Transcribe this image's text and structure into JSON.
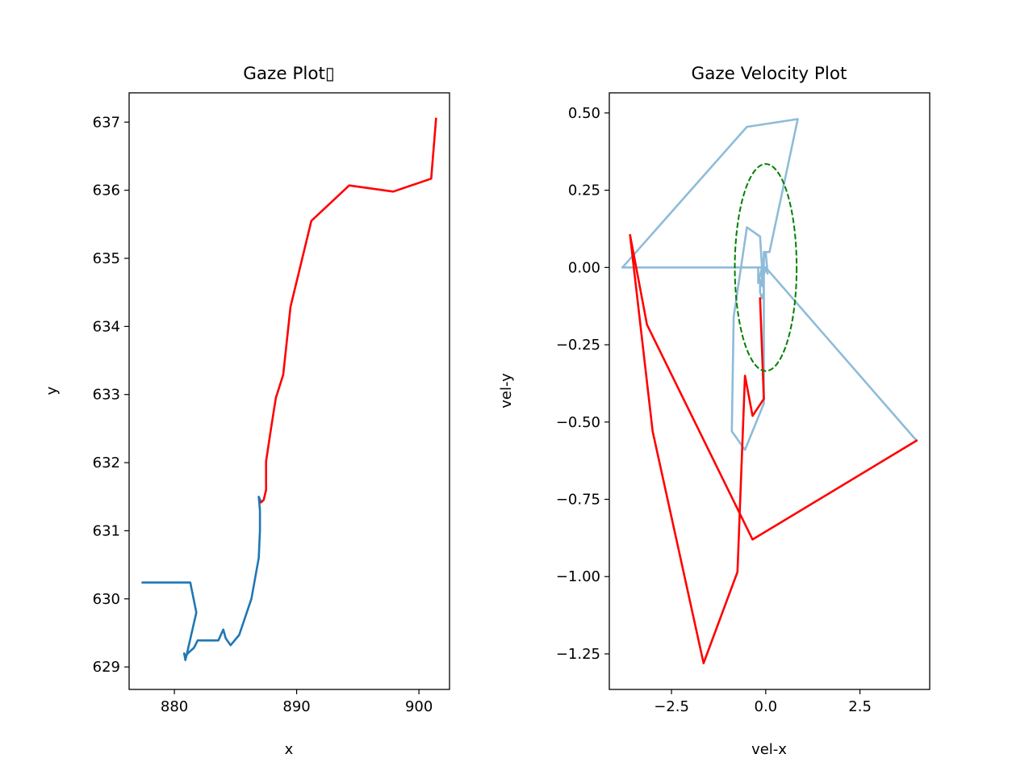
{
  "chart_data": [
    {
      "type": "line",
      "title": "Gaze Plot▯",
      "xlabel": "x",
      "ylabel": "y",
      "xlim": [
        876.3,
        902.5
      ],
      "ylim": [
        628.67,
        637.43
      ],
      "xticks": [
        880,
        890,
        900
      ],
      "xtick_labels": [
        "880",
        "890",
        "900"
      ],
      "yticks": [
        629,
        630,
        631,
        632,
        633,
        634,
        635,
        636,
        637
      ],
      "ytick_labels": [
        "629",
        "630",
        "631",
        "632",
        "633",
        "634",
        "635",
        "636",
        "637"
      ],
      "grid": false,
      "series": [
        {
          "color": "#1f77b4",
          "opacity": 1,
          "points": [
            [
              877.4,
              630.24
            ],
            [
              881.3,
              630.24
            ],
            [
              881.8,
              629.8
            ],
            [
              881.1,
              629.25
            ],
            [
              880.9,
              629.1
            ],
            [
              880.8,
              629.2
            ],
            [
              880.9,
              629.15
            ],
            [
              881.1,
              629.2
            ],
            [
              881.6,
              629.28
            ],
            [
              881.9,
              629.39
            ],
            [
              883.6,
              629.39
            ],
            [
              884.0,
              629.55
            ],
            [
              884.2,
              629.42
            ],
            [
              884.6,
              629.32
            ],
            [
              885.3,
              629.47
            ],
            [
              886.3,
              630.0
            ],
            [
              886.9,
              630.6
            ],
            [
              887.0,
              631.0
            ],
            [
              887.0,
              631.3
            ],
            [
              886.9,
              631.5
            ],
            [
              887.1,
              631.42
            ]
          ]
        },
        {
          "color": "#ff0000",
          "opacity": 1,
          "points": [
            [
              887.1,
              631.42
            ],
            [
              887.3,
              631.45
            ],
            [
              887.5,
              631.6
            ],
            [
              887.5,
              632.02
            ],
            [
              887.9,
              632.5
            ],
            [
              888.3,
              632.95
            ],
            [
              888.9,
              633.29
            ],
            [
              889.5,
              634.29
            ],
            [
              891.2,
              635.55
            ],
            [
              894.3,
              636.07
            ],
            [
              897.9,
              635.98
            ],
            [
              901.0,
              636.17
            ],
            [
              901.4,
              637.05
            ]
          ]
        }
      ]
    },
    {
      "type": "line",
      "title": "Gaze Velocity Plot",
      "xlabel": "vel-x",
      "ylabel": "vel-y",
      "xlim": [
        -4.15,
        4.35
      ],
      "ylim": [
        -1.365,
        0.565
      ],
      "xticks": [
        -2.5,
        0,
        2.5
      ],
      "xtick_labels": [
        "−2.5",
        "0.0",
        "2.5"
      ],
      "yticks": [
        0.5,
        0.25,
        0,
        -0.25,
        -0.5,
        -0.75,
        -1.0,
        -1.25
      ],
      "ytick_labels": [
        "0.50",
        "0.25",
        "0.00",
        "−0.25",
        "−0.50",
        "−0.75",
        "−1.00",
        "−1.25"
      ],
      "grid": false,
      "series": [
        {
          "color": "#1f77b4",
          "opacity": 0.5,
          "points": [
            [
              -3.8,
              0.0
            ],
            [
              -0.2,
              0.0
            ],
            [
              -0.2,
              -0.05
            ],
            [
              -0.1,
              0.0
            ],
            [
              -0.1,
              -0.05
            ],
            [
              0.0,
              0.0
            ],
            [
              0.05,
              -0.02
            ],
            [
              0.0,
              0.05
            ],
            [
              -0.05,
              0.03
            ],
            [
              -0.1,
              0.02
            ],
            [
              -0.1,
              -0.06
            ],
            [
              -0.15,
              -0.04
            ],
            [
              -0.15,
              -0.08
            ],
            [
              -0.1,
              -0.1
            ],
            [
              -0.05,
              -0.08
            ],
            [
              -0.1,
              0.0
            ],
            [
              -0.15,
              0.1
            ],
            [
              -0.5,
              0.13
            ],
            [
              -0.85,
              -0.16
            ],
            [
              -0.9,
              -0.53
            ],
            [
              -0.55,
              -0.59
            ],
            [
              -0.05,
              -0.44
            ],
            [
              -0.05,
              0.0
            ],
            [
              -0.05,
              0.05
            ],
            [
              0.05,
              0.05
            ],
            [
              0.1,
              0.05
            ],
            [
              0.85,
              0.48
            ],
            [
              -0.5,
              0.455
            ],
            [
              -3.8,
              0.0
            ],
            [
              0.0,
              0.0
            ],
            [
              4.0,
              -0.56
            ]
          ]
        },
        {
          "color": "#ff0000",
          "opacity": 1,
          "points": [
            [
              -0.15,
              -0.1
            ],
            [
              -0.05,
              -0.425
            ],
            [
              -0.35,
              -0.48
            ],
            [
              -0.55,
              -0.35
            ],
            [
              -0.75,
              -0.985
            ],
            [
              -1.65,
              -1.28
            ],
            [
              -3.0,
              -0.53
            ],
            [
              -3.6,
              0.105
            ],
            [
              -3.15,
              -0.185
            ],
            [
              -0.35,
              -0.88
            ],
            [
              4.0,
              -0.56
            ]
          ]
        }
      ],
      "ellipse": {
        "center": [
          0.0,
          0.0
        ],
        "x_radius": 0.82,
        "y_radius": 0.335,
        "color": "#008000",
        "style": "dashed"
      }
    }
  ]
}
